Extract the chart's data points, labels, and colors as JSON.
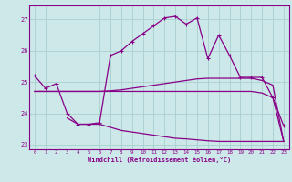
{
  "xlabel": "Windchill (Refroidissement éolien,°C)",
  "background_color": "#cce8e8",
  "grid_color": "#aacfcf",
  "line_color": "#880088",
  "xlim": [
    -0.5,
    23.5
  ],
  "ylim": [
    22.85,
    27.45
  ],
  "yticks": [
    23,
    24,
    25,
    26,
    27
  ],
  "xticks": [
    0,
    1,
    2,
    3,
    4,
    5,
    6,
    7,
    8,
    9,
    10,
    11,
    12,
    13,
    14,
    15,
    16,
    17,
    18,
    19,
    20,
    21,
    22,
    23
  ],
  "series": [
    {
      "x": [
        0,
        1,
        2,
        3,
        4,
        5,
        6,
        7,
        8,
        9,
        10,
        11,
        12,
        13,
        14,
        15,
        16,
        17,
        18,
        19,
        20,
        21,
        22,
        23
      ],
      "y": [
        24.7,
        24.7,
        24.7,
        24.7,
        24.7,
        24.7,
        24.7,
        24.7,
        24.7,
        24.7,
        24.7,
        24.7,
        24.7,
        24.7,
        24.7,
        24.7,
        24.7,
        24.7,
        24.7,
        24.7,
        24.7,
        24.65,
        24.5,
        23.1
      ],
      "marker": null,
      "lw": 0.9
    },
    {
      "x": [
        0,
        1,
        2,
        3,
        4,
        5,
        6,
        7,
        8,
        9,
        10,
        11,
        12,
        13,
        14,
        15,
        16,
        17,
        18,
        19,
        20,
        21,
        22,
        23
      ],
      "y": [
        24.7,
        24.7,
        24.7,
        24.7,
        24.7,
        24.7,
        24.7,
        24.72,
        24.75,
        24.8,
        24.85,
        24.9,
        24.95,
        25.0,
        25.05,
        25.1,
        25.12,
        25.12,
        25.12,
        25.12,
        25.12,
        25.05,
        24.9,
        23.1
      ],
      "marker": null,
      "lw": 0.9
    },
    {
      "x": [
        3,
        4,
        5,
        6,
        7,
        8,
        9,
        10,
        11,
        12,
        13,
        14,
        15,
        16,
        17,
        18,
        19,
        20,
        21,
        22,
        23
      ],
      "y": [
        23.85,
        23.65,
        23.65,
        23.65,
        23.55,
        23.45,
        23.4,
        23.35,
        23.3,
        23.25,
        23.2,
        23.18,
        23.15,
        23.12,
        23.1,
        23.1,
        23.1,
        23.1,
        23.1,
        23.1,
        23.1
      ],
      "marker": null,
      "lw": 0.9
    },
    {
      "x": [
        0,
        1,
        2,
        3,
        4,
        5,
        6,
        7,
        8,
        9,
        10,
        11,
        12,
        13,
        14,
        15,
        16,
        17,
        18,
        19,
        20,
        21,
        22,
        23
      ],
      "y": [
        25.2,
        24.8,
        24.95,
        24.0,
        23.65,
        23.65,
        23.7,
        25.85,
        26.0,
        26.3,
        26.55,
        26.8,
        27.05,
        27.1,
        26.85,
        27.05,
        25.75,
        26.5,
        25.85,
        25.15,
        25.15,
        25.15,
        24.5,
        23.6
      ],
      "marker": "+",
      "lw": 0.9
    }
  ]
}
